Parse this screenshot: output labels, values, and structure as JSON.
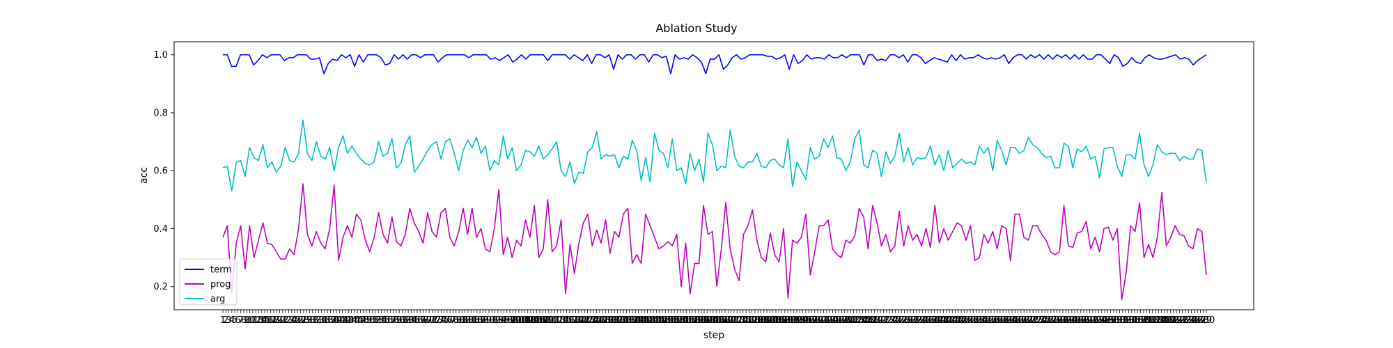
{
  "chart_data": {
    "type": "line",
    "title": "Ablation Study",
    "xlabel": "step",
    "ylabel": "acc",
    "xlim": [
      1,
      330
    ],
    "ylim": [
      0.12,
      1.045
    ],
    "yticks": [
      0.2,
      0.4,
      0.6,
      0.8,
      1.0
    ],
    "ytick_labels": [
      "0.2",
      "0.4",
      "0.6",
      "0.8",
      "1.0"
    ],
    "xtick_count": 330,
    "grid": false,
    "legend_position": "lower-left",
    "series": [
      {
        "name": "term",
        "color": "#0000ff",
        "values": [
          1.0,
          1.0,
          0.96,
          0.96,
          1.0,
          1.0,
          1.0,
          0.965,
          0.98,
          1.0,
          0.99,
          1.0,
          1.0,
          1.0,
          0.98,
          0.99,
          0.99,
          1.0,
          1.0,
          1.0,
          0.985,
          0.985,
          0.99,
          0.935,
          0.97,
          0.985,
          0.98,
          1.0,
          0.99,
          1.0,
          0.96,
          1.0,
          0.975,
          1.0,
          1.0,
          1.0,
          0.99,
          0.965,
          0.97,
          1.0,
          0.985,
          1.0,
          0.985,
          1.0,
          1.0,
          0.99,
          1.0,
          1.0,
          1.0,
          0.975,
          0.99,
          1.0,
          1.0,
          1.0,
          1.0,
          1.0,
          0.99,
          1.0,
          1.0,
          1.0,
          1.0,
          0.985,
          0.99,
          0.98,
          0.99,
          1.0,
          0.975,
          0.985,
          1.0,
          0.985,
          1.0,
          1.0,
          1.0,
          1.0,
          0.98,
          1.0,
          1.0,
          1.0,
          1.0,
          0.985,
          1.0,
          0.99,
          0.98,
          1.0,
          0.97,
          1.0,
          1.0,
          0.99,
          1.0,
          0.95,
          1.0,
          0.985,
          1.0,
          1.0,
          0.985,
          1.0,
          1.0,
          0.975,
          1.0,
          1.0,
          0.99,
          0.995,
          0.935,
          1.0,
          0.985,
          0.99,
          0.985,
          1.0,
          0.99,
          0.975,
          0.935,
          0.985,
          0.985,
          1.0,
          0.95,
          0.965,
          0.99,
          1.0,
          0.985,
          0.99,
          1.0,
          1.0,
          1.0,
          1.0,
          0.995,
          0.995,
          0.985,
          0.99,
          1.0,
          0.95,
          1.0,
          0.97,
          0.98,
          1.0,
          0.985,
          0.99,
          0.99,
          0.985,
          1.0,
          0.99,
          0.99,
          1.0,
          0.99,
          1.0,
          1.0,
          1.0,
          0.965,
          1.0,
          1.0,
          0.98,
          0.985,
          0.98,
          1.0,
          1.0,
          0.99,
          1.0,
          0.975,
          1.0,
          1.0,
          0.99,
          0.97,
          0.98,
          0.99,
          0.985,
          0.98,
          0.975,
          1.0,
          0.98,
          1.0,
          0.985,
          0.99,
          0.99,
          1.0,
          0.99,
          0.985,
          0.99,
          0.985,
          0.99,
          1.0,
          0.97,
          0.99,
          1.0,
          1.0,
          0.985,
          1.0,
          0.99,
          1.0,
          0.985,
          1.0,
          0.985,
          1.0,
          0.99,
          1.0,
          0.985,
          1.0,
          0.985,
          1.0,
          0.985,
          0.985,
          1.0,
          1.0,
          0.985,
          0.97,
          1.0,
          0.99,
          0.96,
          0.97,
          0.99,
          0.975,
          0.97,
          0.99,
          1.0,
          0.99,
          0.985,
          0.985,
          0.99,
          0.995,
          1.0,
          0.985,
          0.99,
          0.985,
          0.965,
          0.98,
          0.99,
          1.0
        ],
        "x_step_values_note": ""
      },
      {
        "name": "prog",
        "color": "#bf00bf",
        "values": [
          0.37,
          0.41,
          0.18,
          0.35,
          0.41,
          0.26,
          0.41,
          0.3,
          0.36,
          0.42,
          0.35,
          0.345,
          0.32,
          0.295,
          0.295,
          0.33,
          0.31,
          0.4,
          0.555,
          0.38,
          0.34,
          0.39,
          0.35,
          0.33,
          0.4,
          0.55,
          0.29,
          0.37,
          0.41,
          0.37,
          0.45,
          0.43,
          0.36,
          0.32,
          0.37,
          0.455,
          0.38,
          0.35,
          0.44,
          0.355,
          0.34,
          0.38,
          0.47,
          0.42,
          0.39,
          0.35,
          0.455,
          0.39,
          0.37,
          0.455,
          0.47,
          0.37,
          0.34,
          0.39,
          0.47,
          0.38,
          0.47,
          0.37,
          0.4,
          0.33,
          0.32,
          0.4,
          0.535,
          0.31,
          0.37,
          0.3,
          0.36,
          0.34,
          0.43,
          0.37,
          0.48,
          0.3,
          0.33,
          0.5,
          0.32,
          0.34,
          0.43,
          0.175,
          0.345,
          0.245,
          0.35,
          0.42,
          0.45,
          0.34,
          0.395,
          0.35,
          0.43,
          0.315,
          0.39,
          0.37,
          0.45,
          0.47,
          0.28,
          0.31,
          0.28,
          0.45,
          0.41,
          0.37,
          0.33,
          0.34,
          0.355,
          0.34,
          0.38,
          0.2,
          0.35,
          0.175,
          0.28,
          0.28,
          0.48,
          0.38,
          0.39,
          0.2,
          0.33,
          0.49,
          0.33,
          0.26,
          0.22,
          0.38,
          0.41,
          0.465,
          0.36,
          0.3,
          0.285,
          0.385,
          0.31,
          0.285,
          0.4,
          0.16,
          0.36,
          0.35,
          0.37,
          0.45,
          0.24,
          0.32,
          0.41,
          0.41,
          0.43,
          0.33,
          0.31,
          0.3,
          0.36,
          0.35,
          0.375,
          0.47,
          0.44,
          0.33,
          0.48,
          0.42,
          0.34,
          0.38,
          0.32,
          0.34,
          0.46,
          0.34,
          0.41,
          0.36,
          0.38,
          0.34,
          0.4,
          0.335,
          0.48,
          0.35,
          0.4,
          0.36,
          0.39,
          0.42,
          0.41,
          0.36,
          0.41,
          0.29,
          0.3,
          0.38,
          0.35,
          0.39,
          0.33,
          0.41,
          0.4,
          0.29,
          0.45,
          0.45,
          0.37,
          0.36,
          0.41,
          0.41,
          0.38,
          0.36,
          0.32,
          0.31,
          0.32,
          0.48,
          0.34,
          0.335,
          0.385,
          0.39,
          0.425,
          0.33,
          0.37,
          0.32,
          0.4,
          0.405,
          0.36,
          0.4,
          0.155,
          0.25,
          0.41,
          0.39,
          0.49,
          0.3,
          0.345,
          0.3,
          0.37,
          0.525,
          0.34,
          0.37,
          0.41,
          0.38,
          0.375,
          0.34,
          0.33,
          0.4,
          0.39,
          0.24
        ]
      },
      {
        "name": "arg",
        "color": "#00bfbf",
        "values": [
          0.61,
          0.615,
          0.53,
          0.63,
          0.635,
          0.58,
          0.68,
          0.645,
          0.635,
          0.69,
          0.61,
          0.63,
          0.595,
          0.615,
          0.68,
          0.635,
          0.63,
          0.66,
          0.775,
          0.66,
          0.635,
          0.7,
          0.65,
          0.64,
          0.68,
          0.6,
          0.68,
          0.72,
          0.66,
          0.685,
          0.66,
          0.64,
          0.625,
          0.62,
          0.63,
          0.7,
          0.65,
          0.66,
          0.71,
          0.61,
          0.625,
          0.69,
          0.72,
          0.595,
          0.615,
          0.64,
          0.67,
          0.69,
          0.7,
          0.64,
          0.7,
          0.71,
          0.66,
          0.6,
          0.67,
          0.705,
          0.68,
          0.715,
          0.66,
          0.685,
          0.6,
          0.635,
          0.62,
          0.72,
          0.64,
          0.68,
          0.6,
          0.62,
          0.67,
          0.665,
          0.65,
          0.685,
          0.64,
          0.655,
          0.675,
          0.7,
          0.6,
          0.58,
          0.63,
          0.555,
          0.595,
          0.59,
          0.665,
          0.68,
          0.735,
          0.64,
          0.655,
          0.65,
          0.655,
          0.61,
          0.65,
          0.64,
          0.705,
          0.67,
          0.565,
          0.645,
          0.56,
          0.73,
          0.67,
          0.66,
          0.61,
          0.71,
          0.6,
          0.61,
          0.555,
          0.66,
          0.6,
          0.64,
          0.56,
          0.73,
          0.69,
          0.6,
          0.615,
          0.61,
          0.74,
          0.65,
          0.615,
          0.61,
          0.63,
          0.63,
          0.66,
          0.615,
          0.61,
          0.635,
          0.64,
          0.62,
          0.61,
          0.71,
          0.545,
          0.63,
          0.6,
          0.57,
          0.68,
          0.64,
          0.65,
          0.71,
          0.68,
          0.72,
          0.645,
          0.64,
          0.6,
          0.63,
          0.71,
          0.74,
          0.62,
          0.61,
          0.67,
          0.66,
          0.58,
          0.665,
          0.625,
          0.65,
          0.73,
          0.63,
          0.68,
          0.62,
          0.645,
          0.64,
          0.645,
          0.685,
          0.62,
          0.655,
          0.6,
          0.67,
          0.61,
          0.625,
          0.64,
          0.625,
          0.63,
          0.62,
          0.685,
          0.66,
          0.68,
          0.6,
          0.705,
          0.67,
          0.62,
          0.68,
          0.68,
          0.66,
          0.67,
          0.715,
          0.69,
          0.68,
          0.66,
          0.645,
          0.65,
          0.61,
          0.61,
          0.695,
          0.685,
          0.61,
          0.675,
          0.665,
          0.685,
          0.64,
          0.65,
          0.575,
          0.675,
          0.68,
          0.68,
          0.615,
          0.58,
          0.655,
          0.655,
          0.64,
          0.73,
          0.62,
          0.58,
          0.62,
          0.69,
          0.665,
          0.655,
          0.66,
          0.66,
          0.635,
          0.65,
          0.64,
          0.64,
          0.675,
          0.67,
          0.56
        ]
      }
    ]
  }
}
